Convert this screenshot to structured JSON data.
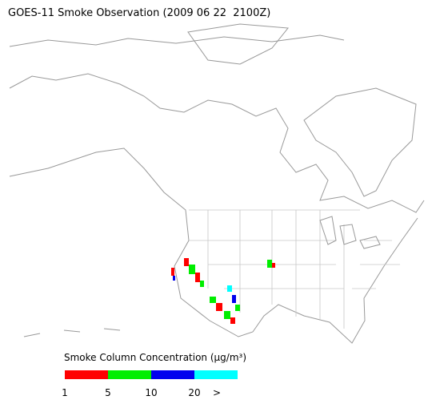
{
  "title": "GOES-11 Smoke Observation (2009 06 22  2100Z)",
  "legend": {
    "title": "Smoke Column Concentration (μg/m³)",
    "colors": [
      "#ff0000",
      "#00ee00",
      "#0000ee",
      "#00ffff"
    ],
    "ticks": [
      1,
      5,
      10,
      20,
      ">"
    ]
  }
}
